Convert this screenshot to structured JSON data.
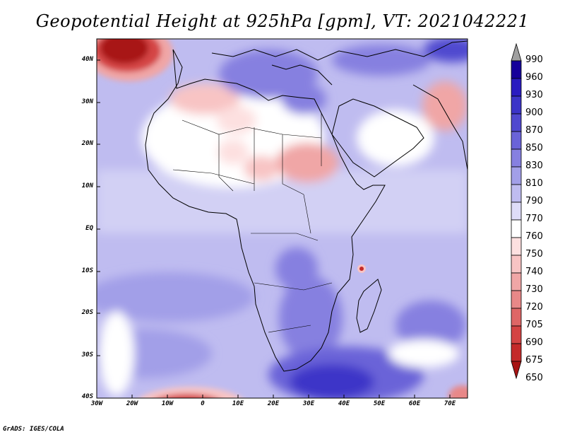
{
  "title": "Geopotential Height at 925hPa [gpm], VT: 2021042221",
  "footer": "GrADS: IGES/COLA",
  "axes": {
    "lat_labels": [
      "40N",
      "30N",
      "20N",
      "10N",
      "EQ",
      "10S",
      "20S",
      "30S",
      "40S"
    ],
    "lon_labels": [
      "30W",
      "20W",
      "10W",
      "0",
      "10E",
      "20E",
      "30E",
      "40E",
      "50E",
      "60E",
      "70E"
    ]
  },
  "colorbar": {
    "levels": [
      "990",
      "960",
      "930",
      "900",
      "870",
      "850",
      "830",
      "810",
      "790",
      "770",
      "760",
      "750",
      "740",
      "730",
      "720",
      "705",
      "690",
      "675",
      "650"
    ],
    "colors": [
      "#a0a0a0",
      "#16009a",
      "#2a1bc0",
      "#3c34c8",
      "#5048cf",
      "#6a63d8",
      "#8680e0",
      "#a29fe8",
      "#bfbcf0",
      "#dedcf8",
      "#ffffff",
      "#fde0e0",
      "#f8c4c4",
      "#f0a6a6",
      "#e88888",
      "#de6666",
      "#d44444",
      "#c42a2a",
      "#a81414"
    ]
  },
  "map": {
    "lon_range": [
      -30,
      75
    ],
    "lat_range": [
      -40,
      45
    ],
    "background_color": "#bfbcf0"
  }
}
